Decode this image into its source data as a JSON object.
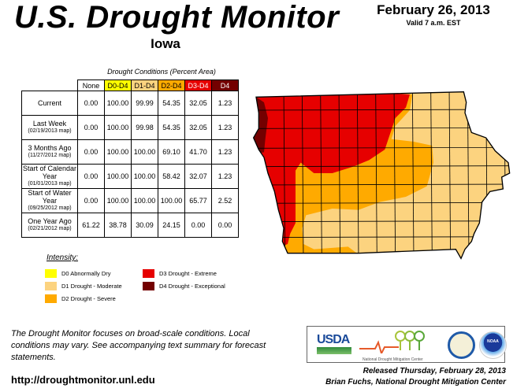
{
  "header": {
    "title": "U.S. Drought Monitor",
    "date": "February 26, 2013",
    "valid": "Valid 7 a.m. EST",
    "state": "Iowa"
  },
  "table": {
    "caption": "Drought Conditions (Percent Area)",
    "columns": [
      "None",
      "D0-D4",
      "D1-D4",
      "D2-D4",
      "D3-D4",
      "D4"
    ],
    "column_colors": [
      "#ffffff",
      "#ffff00",
      "#fcd37f",
      "#ffaa00",
      "#e60000",
      "#730000"
    ],
    "rows": [
      {
        "label": "Current",
        "sub": "",
        "values": [
          "0.00",
          "100.00",
          "99.99",
          "54.35",
          "32.05",
          "1.23"
        ]
      },
      {
        "label": "Last Week",
        "sub": "(02/19/2013 map)",
        "values": [
          "0.00",
          "100.00",
          "99.98",
          "54.35",
          "32.05",
          "1.23"
        ]
      },
      {
        "label": "3 Months Ago",
        "sub": "(11/27/2012 map)",
        "values": [
          "0.00",
          "100.00",
          "100.00",
          "69.10",
          "41.70",
          "1.23"
        ]
      },
      {
        "label": "Start of Calendar Year",
        "sub": "(01/01/2013 map)",
        "values": [
          "0.00",
          "100.00",
          "100.00",
          "58.42",
          "32.07",
          "1.23"
        ]
      },
      {
        "label": "Start of Water Year",
        "sub": "(09/25/2012 map)",
        "values": [
          "0.00",
          "100.00",
          "100.00",
          "100.00",
          "65.77",
          "2.52"
        ]
      },
      {
        "label": "One Year Ago",
        "sub": "(02/21/2012 map)",
        "values": [
          "61.22",
          "38.78",
          "30.09",
          "24.15",
          "0.00",
          "0.00"
        ]
      }
    ]
  },
  "legend": {
    "title": "Intensity:",
    "items": [
      {
        "label": "D0 Abnormally Dry",
        "color": "#ffff00"
      },
      {
        "label": "D1 Drought - Moderate",
        "color": "#fcd37f"
      },
      {
        "label": "D2 Drought - Severe",
        "color": "#ffaa00"
      },
      {
        "label": "D3 Drought - Extreme",
        "color": "#e60000"
      },
      {
        "label": "D4 Drought - Exceptional",
        "color": "#730000"
      }
    ]
  },
  "footer": {
    "note": "The Drought Monitor focuses on broad-scale conditions. Local conditions may vary. See accompanying text summary for forecast statements.",
    "url": "http://droughtmonitor.unl.edu",
    "released": "Released Thursday, February 28, 2013",
    "author": "Brian Fuchs, National Drought Mitigation Center"
  },
  "logos": {
    "usda": "USDA",
    "ndmc": "National Drought Mitigation Center",
    "noaa": "NOAA"
  }
}
